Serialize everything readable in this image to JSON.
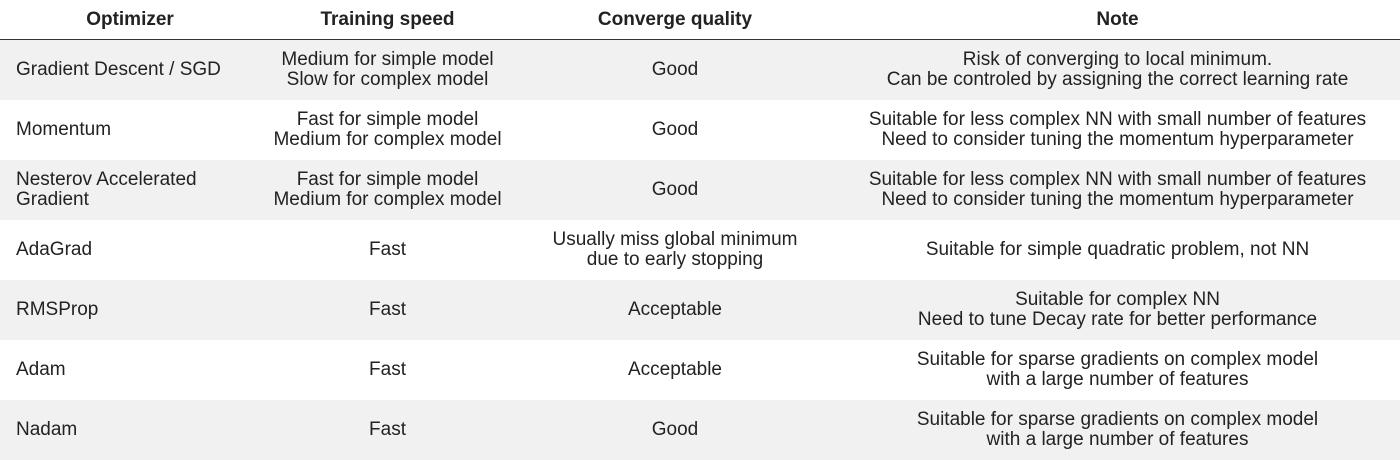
{
  "table": {
    "headers": [
      "Optimizer",
      "Training speed",
      "Converge quality",
      "Note"
    ],
    "rows": [
      {
        "optimizer": "Gradient Descent / SGD",
        "speed": [
          "Medium for simple model",
          "Slow for complex model"
        ],
        "quality": [
          "Good"
        ],
        "note": [
          "Risk of converging to local minimum.",
          "Can be controled by assigning the correct learning rate"
        ]
      },
      {
        "optimizer": "Momentum",
        "speed": [
          "Fast for simple model",
          "Medium for complex model"
        ],
        "quality": [
          "Good"
        ],
        "note": [
          "Suitable for less complex NN with small number of features",
          "Need to consider tuning the momentum hyperparameter"
        ]
      },
      {
        "optimizer": "Nesterov Accelerated Gradient",
        "speed": [
          "Fast for simple model",
          "Medium for complex model"
        ],
        "quality": [
          "Good"
        ],
        "note": [
          "Suitable for less complex NN with small number of features",
          "Need to consider tuning the momentum hyperparameter"
        ]
      },
      {
        "optimizer": "AdaGrad",
        "speed": [
          "Fast"
        ],
        "quality": [
          "Usually miss global minimum",
          "due to early stopping"
        ],
        "note": [
          "Suitable for simple quadratic problem, not NN"
        ]
      },
      {
        "optimizer": "RMSProp",
        "speed": [
          "Fast"
        ],
        "quality": [
          "Acceptable"
        ],
        "note": [
          "Suitable for complex NN",
          "Need to tune Decay rate for better performance"
        ]
      },
      {
        "optimizer": "Adam",
        "speed": [
          "Fast"
        ],
        "quality": [
          "Acceptable"
        ],
        "note": [
          "Suitable for sparse gradients on complex model",
          "with a large number of features"
        ]
      },
      {
        "optimizer": "Nadam",
        "speed": [
          "Fast"
        ],
        "quality": [
          "Good"
        ],
        "note": [
          "Suitable for sparse gradients on complex model",
          "with a large number of features"
        ]
      }
    ]
  }
}
